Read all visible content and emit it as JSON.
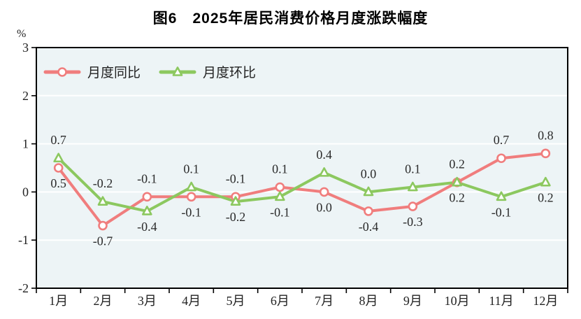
{
  "chart_data": {
    "type": "line",
    "title": "图6　2025年居民消费价格月度涨跌幅度",
    "ylabel": "%",
    "xlabel": "",
    "ylim": [
      -2,
      3
    ],
    "yticks": [
      3,
      2,
      1,
      0,
      -1,
      -2
    ],
    "grid": true,
    "legend_position": "top-left-inside",
    "categories": [
      "1月",
      "2月",
      "3月",
      "4月",
      "5月",
      "6月",
      "7月",
      "8月",
      "9月",
      "10月",
      "11月",
      "12月"
    ],
    "series": [
      {
        "name": "月度同比",
        "marker": "circle",
        "color": "#f07d7d",
        "values": [
          0.5,
          -0.7,
          -0.1,
          -0.1,
          -0.1,
          0.1,
          0.0,
          -0.4,
          -0.3,
          0.2,
          0.7,
          0.8
        ],
        "labels": [
          "0.5",
          "-0.7",
          "-0.1",
          "-0.1",
          "-0.1",
          "0.1",
          "0.0",
          "-0.4",
          "-0.3",
          "0.2",
          "0.7",
          "0.8"
        ],
        "label_pos": [
          "below",
          "below",
          "above",
          "below",
          "above",
          "above",
          "below",
          "below",
          "below",
          "below",
          "above",
          "above"
        ]
      },
      {
        "name": "月度环比",
        "marker": "triangle",
        "color": "#8cc85f",
        "values": [
          0.7,
          -0.2,
          -0.4,
          0.1,
          -0.2,
          -0.1,
          0.4,
          0.0,
          0.1,
          0.2,
          -0.1,
          0.2
        ],
        "labels": [
          "0.7",
          "-0.2",
          "-0.4",
          "0.1",
          "-0.2",
          "-0.1",
          "0.4",
          "0.0",
          "0.1",
          "0.2",
          "-0.1",
          "0.2"
        ],
        "label_pos": [
          "above",
          "above",
          "below",
          "above",
          "below",
          "below",
          "above",
          "above",
          "above",
          "above",
          "below",
          "below"
        ]
      }
    ],
    "colors": {
      "plot_bg": "#edf4f6",
      "gridline": "#ffffff",
      "axis": "#000000",
      "tick_text": "#222222",
      "data_label_text": "#2b2b2b"
    }
  }
}
